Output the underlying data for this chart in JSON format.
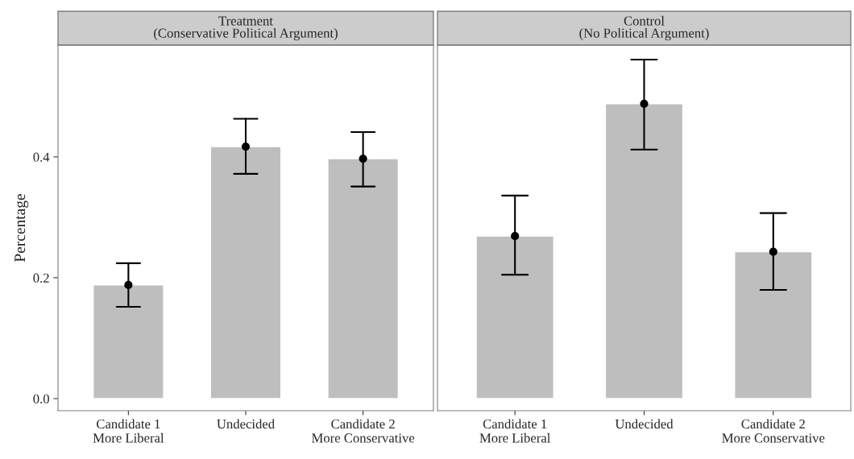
{
  "chart_data": [
    {
      "type": "bar",
      "title": "Treatment\n(Conservative Political Argument)",
      "ylabel": "Percentage",
      "categories": [
        "Candidate 1\nMore Liberal",
        "Undecided",
        "Candidate 2\nMore Conservative"
      ],
      "series": [
        {
          "color": "#bebebe",
          "values": [
            0.188,
            0.417,
            0.397
          ]
        },
        {
          "type": "scatter",
          "color": "#000000",
          "values": [
            0.188,
            0.417,
            0.397
          ],
          "errors": [
            [
              0.152,
              0.224
            ],
            [
              0.372,
              0.463
            ],
            [
              0.351,
              0.441
            ]
          ]
        }
      ],
      "ylim": [
        -0.02,
        0.585
      ],
      "yticks": [
        {
          "value": 0,
          "label": "0.0"
        },
        0.2,
        0.4
      ],
      "grid": false,
      "marker": "circle"
    },
    {
      "type": "bar",
      "title": "Control\n(No Political Argument)",
      "categories": [
        "Candidate 1\nMore Liberal",
        "Undecided",
        "Candidate 2\nMore Conservative"
      ],
      "series": [
        {
          "color": "#bebebe",
          "values": [
            0.269,
            0.488,
            0.243
          ]
        },
        {
          "type": "scatter",
          "color": "#000000",
          "values": [
            0.269,
            0.488,
            0.243
          ],
          "errors": [
            [
              0.205,
              0.336
            ],
            [
              0.412,
              0.561
            ],
            [
              0.18,
              0.307
            ]
          ]
        }
      ],
      "ylim": [
        -0.02,
        0.585
      ],
      "grid": false,
      "marker": "circle",
      "tick_labels": "x"
    }
  ]
}
